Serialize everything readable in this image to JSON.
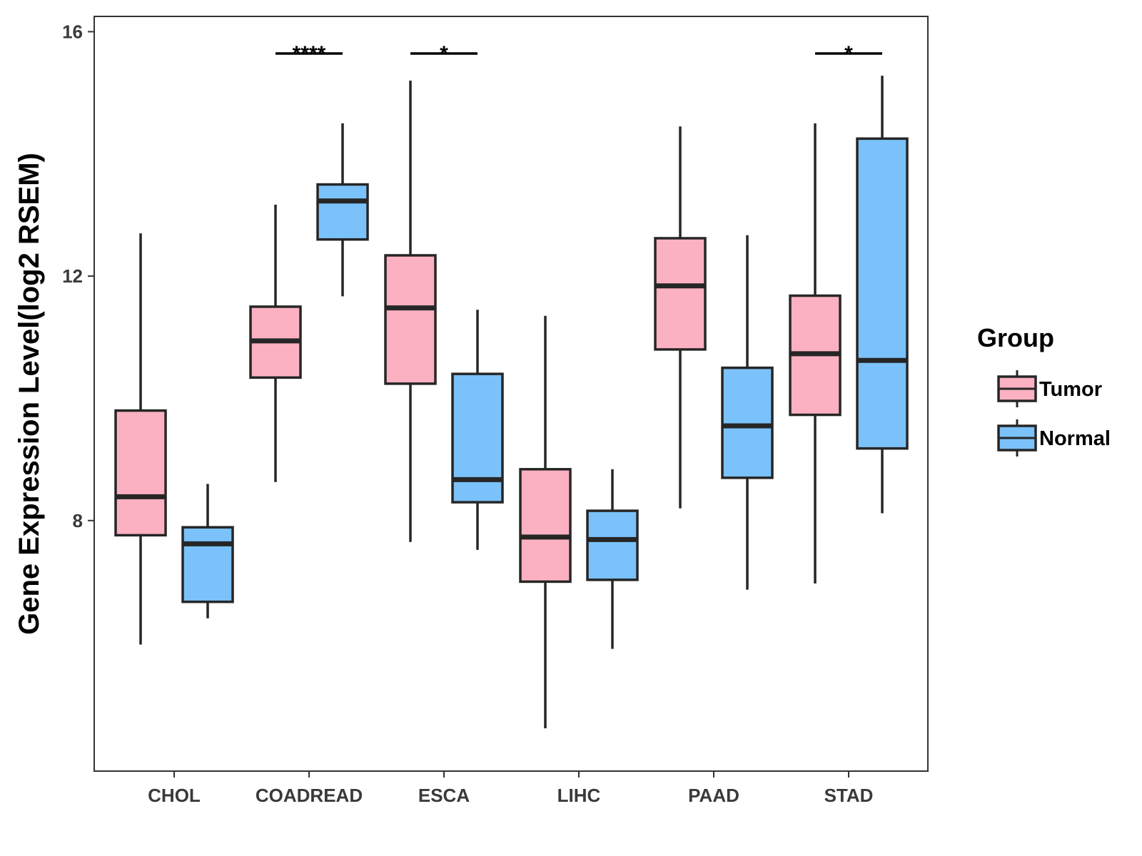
{
  "chart_data": {
    "type": "boxplot",
    "ylabel": "Gene Expression Level(log2 RSEM)",
    "xlabel": "",
    "ylim": [
      3.9,
      16.25
    ],
    "yticks": [
      8,
      12,
      16
    ],
    "categories": [
      "CHOL",
      "COADREAD",
      "ESCA",
      "LIHC",
      "PAAD",
      "STAD"
    ],
    "legend": {
      "title": "Group",
      "position": "right"
    },
    "series": [
      {
        "name": "Tumor",
        "color": "#FBB1C1",
        "boxes": [
          {
            "min": 5.97,
            "q1": 7.76,
            "median": 8.39,
            "q3": 9.8,
            "max": 12.7
          },
          {
            "min": 8.63,
            "q1": 10.34,
            "median": 10.94,
            "q3": 11.5,
            "max": 13.17
          },
          {
            "min": 7.65,
            "q1": 10.24,
            "median": 11.48,
            "q3": 12.34,
            "max": 15.2
          },
          {
            "min": 4.6,
            "q1": 7.0,
            "median": 7.73,
            "q3": 8.84,
            "max": 11.35
          },
          {
            "min": 8.2,
            "q1": 10.8,
            "median": 11.84,
            "q3": 12.62,
            "max": 14.45
          },
          {
            "min": 6.97,
            "q1": 9.73,
            "median": 10.73,
            "q3": 11.68,
            "max": 14.5
          }
        ]
      },
      {
        "name": "Normal",
        "color": "#7AC2F9",
        "boxes": [
          {
            "min": 6.4,
            "q1": 6.67,
            "median": 7.62,
            "q3": 7.89,
            "max": 8.6
          },
          {
            "min": 11.67,
            "q1": 12.6,
            "median": 13.23,
            "q3": 13.5,
            "max": 14.5
          },
          {
            "min": 7.52,
            "q1": 8.3,
            "median": 8.67,
            "q3": 10.4,
            "max": 11.45
          },
          {
            "min": 5.9,
            "q1": 7.03,
            "median": 7.69,
            "q3": 8.16,
            "max": 8.84
          },
          {
            "min": 6.87,
            "q1": 8.7,
            "median": 9.55,
            "q3": 10.5,
            "max": 12.67
          },
          {
            "min": 8.12,
            "q1": 9.18,
            "median": 10.62,
            "q3": 14.25,
            "max": 15.28
          }
        ]
      }
    ],
    "annotations": [
      {
        "category": "COADREAD",
        "label": "****"
      },
      {
        "category": "ESCA",
        "label": "*"
      },
      {
        "category": "STAD",
        "label": "*"
      }
    ]
  }
}
